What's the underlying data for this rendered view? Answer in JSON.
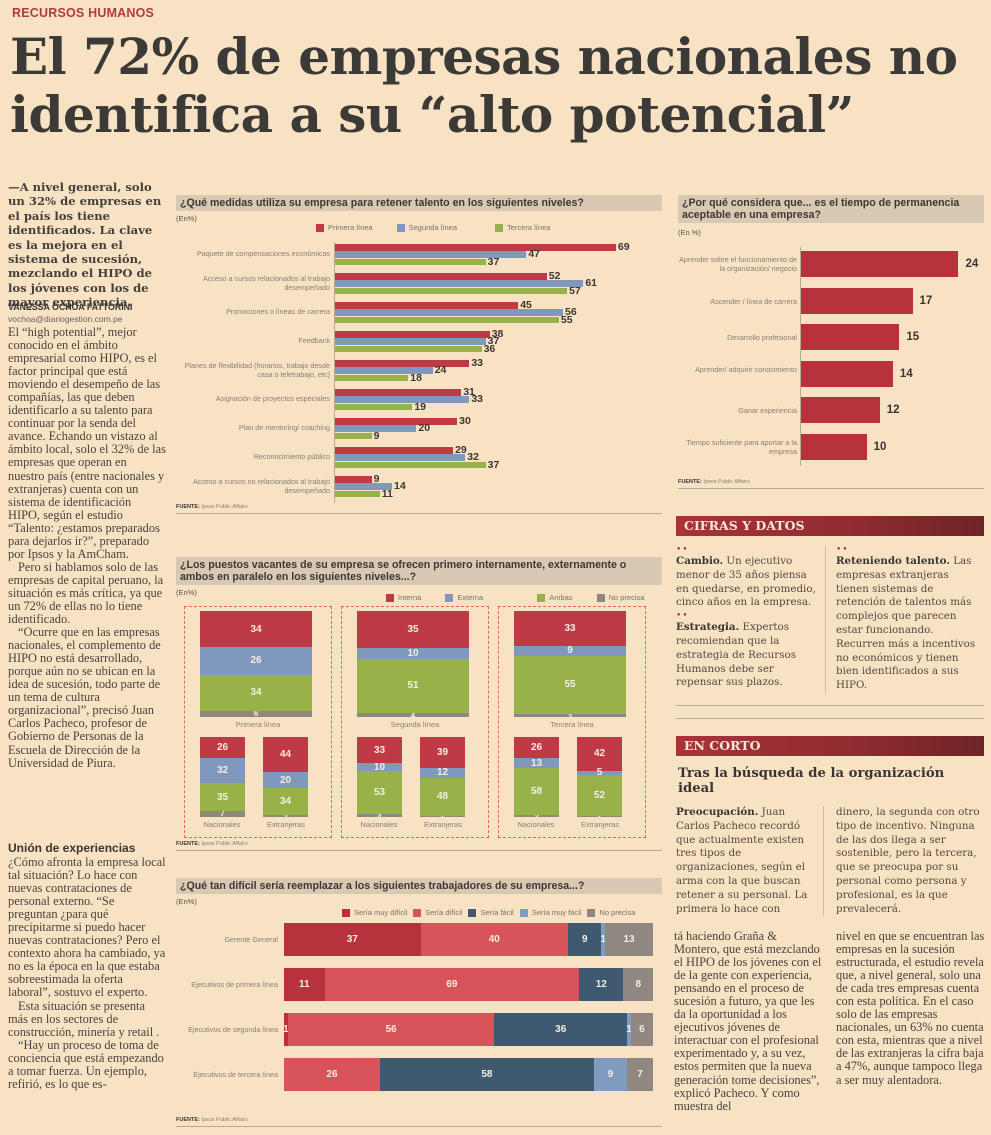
{
  "section": "RECURSOS HUMANOS",
  "headline": "El 72% de empresas nacionales no identifica a su “alto potencial”",
  "lead": "—A nivel general, solo un 32% de empresas en el país los tiene identificados. La clave es la mejora en el sistema de sucesión, mezclando el HIPO de los jóvenes con los de mayor experiencia.",
  "byline": "VANESSA OCHOA FATTORINI",
  "email": "vochoa@diariogestion.com.pe",
  "body_paragraphs": [
    "El “high potential”, mejor conocido en el ámbito empresarial como HIPO, es el factor principal que está moviendo el desempeño de las compañías, las que deben identificarlo a su talento para continuar por la senda del avance. Echando un vistazo al ámbito local, solo el 32% de las empresas que operan en nuestro país (entre nacionales y extranjeras) cuenta con un sistema de identificación HIPO, según el estudio “Talento: ¿estamos preparados para dejarlos ir?”, preparado por Ipsos y la AmCham.",
    "Pero si hablamos solo de las empresas de capital peruano, la situación es más crítica, ya que un 72% de ellas no lo tiene identificado.",
    "“Ocurre que en las empresas nacionales, el complemento de HIPO no está desarrollado, porque aún no se ubican en la idea de sucesión, todo parte de un tema de cultura organizacional”, precisó Juan Carlos Pacheco, profesor de Gobierno de Personas de la Escuela de Dirección de la Universidad de Piura."
  ],
  "subhead": "Unión de experiencias",
  "body2_paragraphs": [
    "¿Cómo afronta la empresa local tal situación? Lo hace con nuevas contrataciones de personal externo. “Se preguntan ¿para qué precipitarme si puedo hacer nuevas contrataciones? Pero el contexto ahora ha cambiado, ya no es la época en la que estaba sobreestimada la oferta laboral”, sostuvo el experto.",
    "Esta situación se presenta más en los sectores de construcción, minería y retail .",
    "“Hay un proceso de toma de conciencia que está empezando a tomar fuerza. Un ejemplo, refirió, es lo que es-"
  ],
  "continuation_col1": "tá haciendo Graña & Montero, que está mezclando el HIPO de los jóvenes con el de la gente con experiencia, pensando en el proceso de sucesión a futuro, ya que les da la oportunidad a los ejecutivos jóvenes de interactuar con el profesional experimentado y, a su vez, estos permiten que la nueva generación tome decisiones”, explicó Pacheco. Y como muestra del",
  "continuation_col2": "nivel en que se encuentran las empresas en la sucesión estructurada, el estudio revela que, a nivel general, solo una de cada tres empresas cuenta con esta política. En el caso solo de las empresas nacionales, un 63% no cuenta con esta, mientras que a nivel de las extranjeras la cifra baja a 47%, aunque tampoco llega a ser muy alentadora.",
  "fuente_label": "FUENTE:",
  "fuente_text": "Ipsos Public Affairs",
  "colors": {
    "red": "#bf3a47",
    "blue": "#7f98bb",
    "green": "#98b24a",
    "gray": "#8f8780",
    "dark_red": "#b8323d",
    "light_red": "#d9545a",
    "dark_blue": "#3f5a70",
    "light_blue": "#7f9cc0",
    "box_red": "#9e2f33"
  },
  "cifras": {
    "title": "CIFRAS Y DATOS",
    "items": [
      {
        "bold": "Cambio.",
        "text": " Un ejecutivo menor de 35 años piensa en quedarse, en promedio, cinco años en la empresa."
      },
      {
        "bold": "Estrategia.",
        "text": " Expertos recomiendan que la estrategia de Recursos Humanos debe ser repensar sus plazos."
      },
      {
        "bold": "Reteniendo talento.",
        "text": " Las empresas extranjeras tienen sistemas de retención de talentos más complejos que parecen estar funcionando. Recurren más a incentivos no económicos y tienen bien identificados a sus HIPO."
      }
    ]
  },
  "en_corto": {
    "title": "EN CORTO",
    "headline": "Tras la búsqueda de la organización ideal",
    "col1_bold": "Preocupación.",
    "col1_text": " Juan Carlos Pacheco recordó que actualmente existen tres tipos de organizaciones, según el arma con la que buscan retener a su personal. La primera lo hace con",
    "col2_text": "dinero, la segunda con otro tipo de incentivo. Ninguna de las dos llega a ser sostenible, pero la tercera, que se preocupa por su personal como persona y profesional, es la que prevalecerá."
  },
  "chart_data": [
    {
      "type": "bar",
      "orientation": "horizontal",
      "title": "¿Qué medidas utiliza su empresa para retener talento en los siguientes niveles?",
      "subtitle": "(En%)",
      "legend": [
        "Primera línea",
        "Segunda línea",
        "Tercera línea"
      ],
      "legend_position": "top",
      "categories": [
        "Paquete de compensaciones económicas",
        "Acceso a cursos relacionados al trabajo desempeñado",
        "Promociones o líneas de carrera",
        "Feedback",
        "Planes de flexibilidad (horarios, trabajo desde casa o teletrabajo, etc)",
        "Asignación de proyectos especiales",
        "Plan de mentoring/ coaching",
        "Reconocimiento público",
        "Acceso a cursos no relacionados al trabajo desempeñado"
      ],
      "series": [
        {
          "name": "Primera línea",
          "values": [
            69,
            52,
            45,
            38,
            33,
            31,
            30,
            29,
            9
          ]
        },
        {
          "name": "Segunda línea",
          "values": [
            47,
            61,
            56,
            37,
            24,
            33,
            20,
            32,
            14
          ]
        },
        {
          "name": "Tercera línea",
          "values": [
            37,
            57,
            55,
            36,
            18,
            19,
            9,
            37,
            11
          ]
        }
      ],
      "xlim": [
        0,
        70
      ],
      "source": "Ipsos Public Affairs"
    },
    {
      "type": "bar",
      "orientation": "horizontal",
      "title": "¿Por qué considera que... es el tiempo de permanencia aceptable en una empresa?",
      "subtitle": "(En %)",
      "categories": [
        "Aprender sobre el funcionamiento de la organización/ negocio",
        "Ascender / línea de carrera",
        "Desarrollo profesional",
        "Aprender/ adquirir conocimiento",
        "Ganar experiencia",
        "Tiempo suficiente para aportar a la empresa"
      ],
      "values": [
        24,
        17,
        15,
        14,
        12,
        10
      ],
      "xlim": [
        0,
        25
      ],
      "source": "Ipsos Public Affairs"
    },
    {
      "type": "bar",
      "stacked": true,
      "title": "¿Los puestos vacantes de su empresa se ofrecen primero internamente, externamente o ambos en paralelo en los siguientes niveles...?",
      "subtitle": "(En%)",
      "legend": [
        "Interna",
        "Externa",
        "Ambas",
        "No precisa"
      ],
      "groups": [
        {
          "name": "Primera línea",
          "total": [
            34,
            26,
            34,
            6
          ],
          "nacionales": [
            26,
            32,
            35,
            7
          ],
          "extranjeras": [
            44,
            20,
            34,
            2
          ]
        },
        {
          "name": "Segunda línea",
          "total": [
            35,
            10,
            51,
            4
          ],
          "nacionales": [
            33,
            10,
            53,
            4
          ],
          "extranjeras": [
            39,
            12,
            48,
            1
          ]
        },
        {
          "name": "Tercera línea",
          "total": [
            33,
            9,
            55,
            3
          ],
          "nacionales": [
            26,
            13,
            58,
            3
          ],
          "extranjeras": [
            42,
            5,
            52,
            1
          ]
        }
      ],
      "sub_labels": [
        "Nacionales",
        "Extranjeras"
      ],
      "source": "Ipsos Public Affairs"
    },
    {
      "type": "bar",
      "stacked": true,
      "orientation": "horizontal",
      "title": "¿Qué tan difícil sería reemplazar a los siguientes trabajadores de su empresa...?",
      "subtitle": "(En%)",
      "legend": [
        "Sería muy difícil",
        "Sería difícil",
        "Sería fácil",
        "Sería muy fácil",
        "No precisa"
      ],
      "categories": [
        "Gerente General",
        "Ejecutivos de primera línea",
        "Ejecutivos de segunda línea",
        "Ejecutivos de tercera línea"
      ],
      "series": [
        {
          "name": "Sería muy difícil",
          "values": [
            37,
            11,
            1,
            0
          ]
        },
        {
          "name": "Sería difícil",
          "values": [
            40,
            69,
            56,
            26
          ]
        },
        {
          "name": "Sería fácil",
          "values": [
            9,
            12,
            36,
            58
          ]
        },
        {
          "name": "Sería muy fácil",
          "values": [
            1,
            0,
            1,
            9
          ]
        },
        {
          "name": "No precisa",
          "values": [
            13,
            8,
            6,
            7
          ]
        }
      ],
      "source": "Ipsos Public Affairs"
    }
  ]
}
